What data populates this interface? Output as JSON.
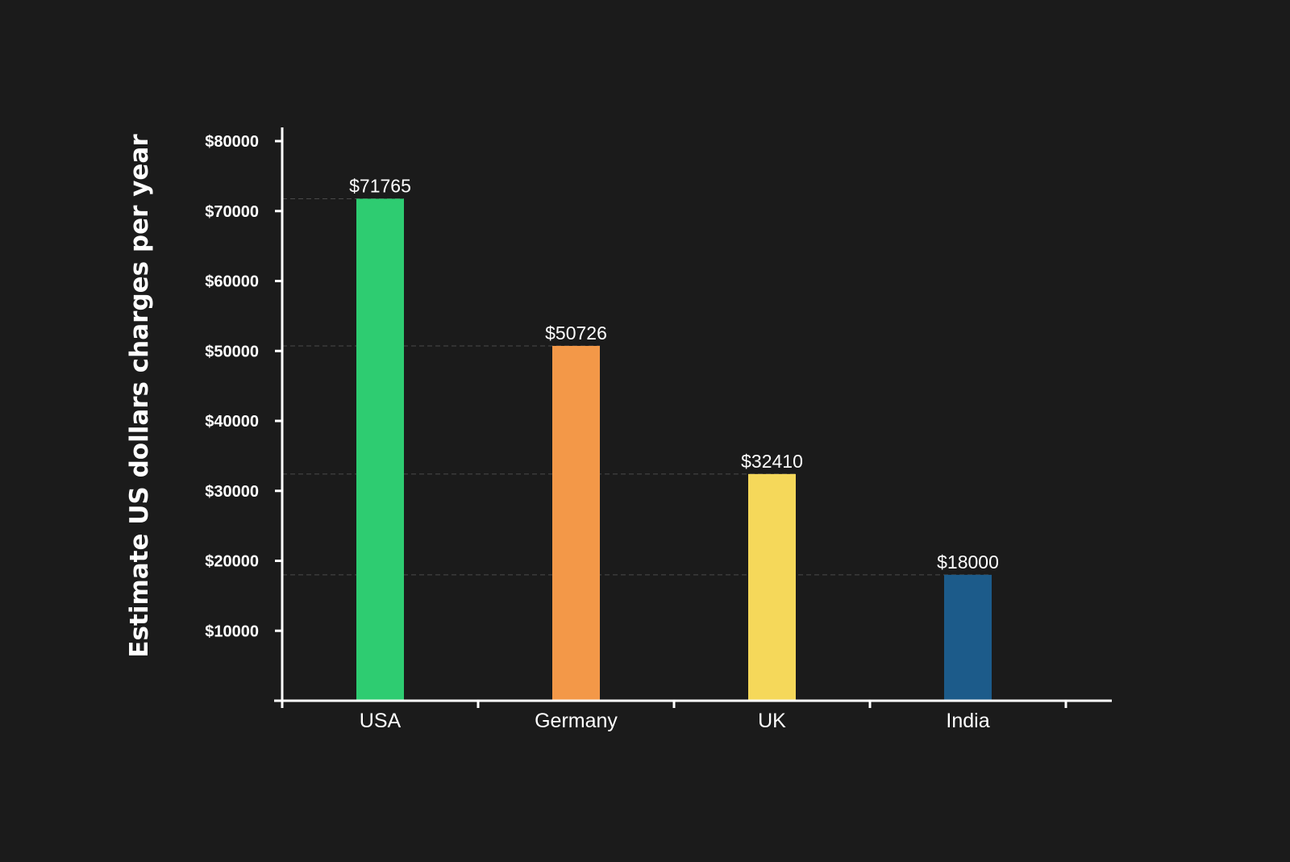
{
  "chart_data": {
    "type": "bar",
    "title": "",
    "xlabel": "",
    "ylabel": "Estimate US dollars charges per year",
    "categories": [
      "USA",
      "Germany",
      "UK",
      "India"
    ],
    "values": [
      71765,
      50726,
      32410,
      18000
    ],
    "data_labels": [
      "$71765",
      "$50726",
      "$32410",
      "$18000"
    ],
    "ylim": [
      0,
      80000
    ],
    "yticks": [
      10000,
      20000,
      30000,
      40000,
      50000,
      60000,
      70000,
      80000
    ],
    "ytick_labels": [
      "$10000",
      "$20000",
      "$30000",
      "$40000",
      "$50000",
      "$60000",
      "$70000",
      "$80000"
    ],
    "colors": [
      "#2ecc71",
      "#f39848",
      "#f5d85a",
      "#1c5b8a"
    ],
    "background_color": "#1b1b1b",
    "axis_color": "#ffffff",
    "guide_line_color": "#4a4a4a",
    "grid": false,
    "legend": "none"
  }
}
